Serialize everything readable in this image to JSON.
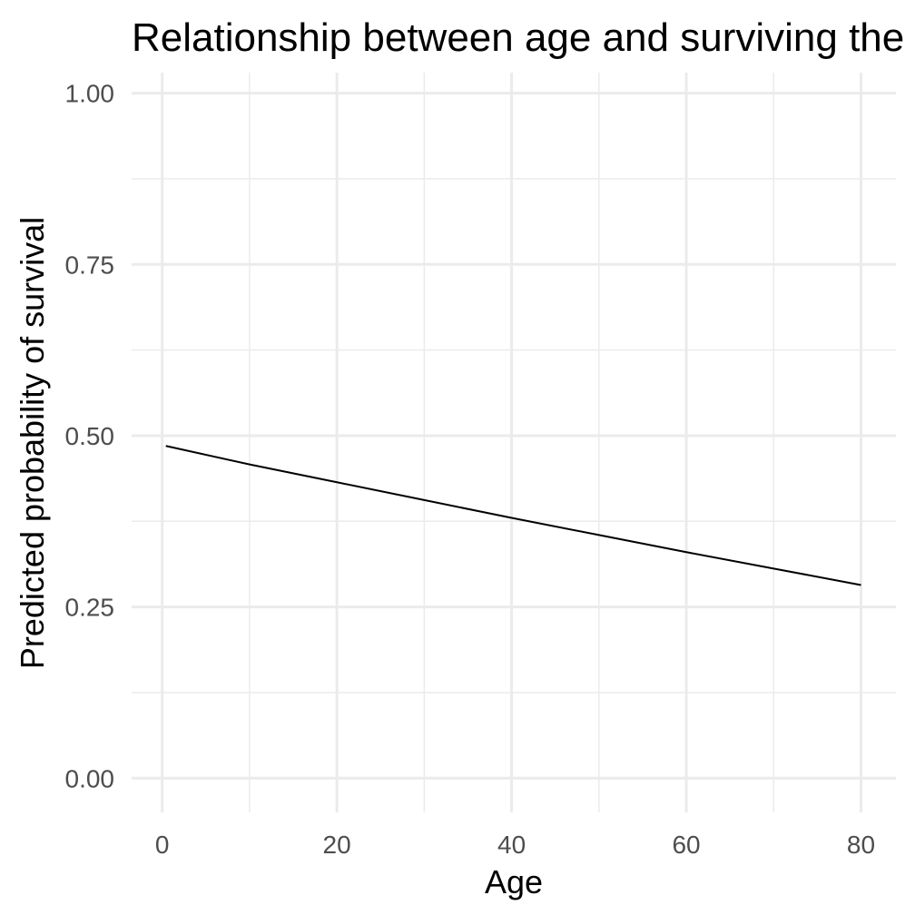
{
  "chart_data": {
    "type": "line",
    "title": "Relationship between age and surviving the Titanic",
    "xlabel": "Age",
    "ylabel": "Predicted probability of survival",
    "xlim": [
      -3.5,
      84
    ],
    "ylim": [
      -0.05,
      1.03
    ],
    "x_ticks": [
      0,
      20,
      40,
      60,
      80
    ],
    "x_tick_labels": [
      "0",
      "20",
      "40",
      "60",
      "80"
    ],
    "x_minor_ticks": [
      10,
      30,
      50,
      70
    ],
    "y_ticks": [
      0,
      0.25,
      0.5,
      0.75,
      1.0
    ],
    "y_tick_labels": [
      "0.00",
      "0.25",
      "0.50",
      "0.75",
      "1.00"
    ],
    "y_minor_ticks": [
      0.125,
      0.375,
      0.625,
      0.875
    ],
    "grid": true,
    "series": [
      {
        "x": [
          0.42,
          10,
          20,
          30,
          40,
          50,
          60,
          70,
          80
        ],
        "y": [
          0.485,
          0.458,
          0.432,
          0.406,
          0.38,
          0.355,
          0.33,
          0.306,
          0.282
        ]
      }
    ]
  }
}
